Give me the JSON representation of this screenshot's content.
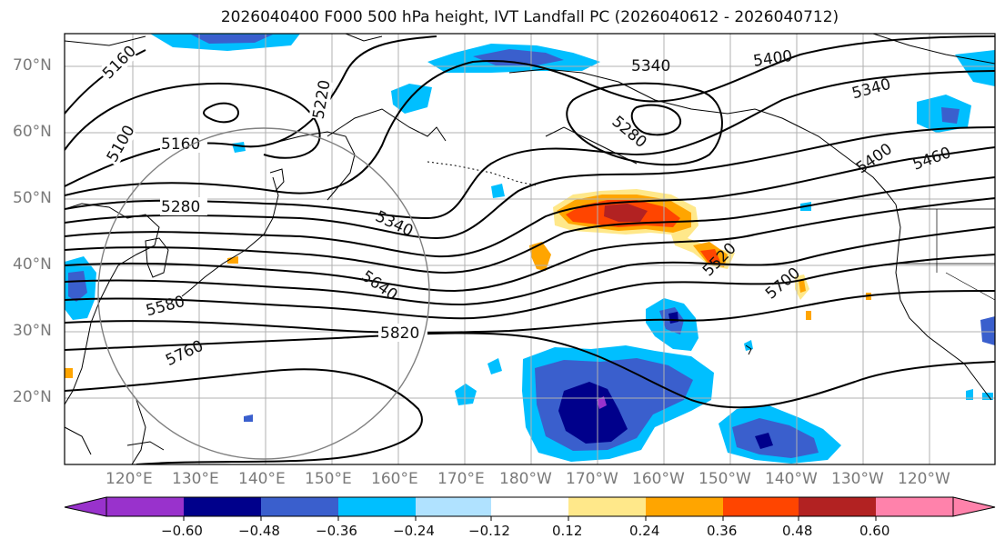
{
  "title": "2026040400 F000 500 hPa height, IVT Landfall PC (2026040612 - 2026040712)",
  "lat_labels": [
    "70°N",
    "60°N",
    "50°N",
    "40°N",
    "30°N",
    "20°N"
  ],
  "lon_labels": [
    "120°E",
    "130°E",
    "140°E",
    "150°E",
    "160°E",
    "170°E",
    "180°W",
    "170°W",
    "160°W",
    "150°W",
    "140°W",
    "130°W",
    "120°W"
  ],
  "colorbar": {
    "ticks": [
      "−0.60",
      "−0.48",
      "−0.36",
      "−0.24",
      "−0.12",
      "0.12",
      "0.24",
      "0.36",
      "0.48",
      "0.60"
    ],
    "colors": [
      "#9932cc",
      "#00008b",
      "#3a5fcd",
      "#00bfff",
      "#b0e2ff",
      "#ffffff",
      "#ffe88a",
      "#ffa500",
      "#ff4500",
      "#b22222",
      "#ff82ab"
    ]
  },
  "contour_labels": [
    "5160",
    "5100",
    "5160",
    "5280",
    "5220",
    "5340",
    "5340",
    "5400",
    "5340",
    "5400",
    "5460",
    "5280",
    "5520",
    "5580",
    "5640",
    "5700",
    "5760",
    "5820"
  ],
  "map": {
    "extent_lon": [
      110,
      250
    ],
    "extent_lat": [
      10,
      75
    ],
    "pos_anomaly_color": "#ff4500",
    "neg_anomaly_color": "#3a5fcd"
  }
}
